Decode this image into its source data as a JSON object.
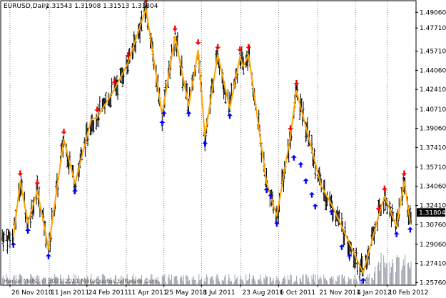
{
  "header": {
    "symbol_timeframe": "EURUSD,Daily",
    "ohlc": "1.31543 1.31908 1.31513 1.31804"
  },
  "footer": {
    "copyright": "Hanse Mets, © 2001-2011 MetaQuotes Software Corp."
  },
  "price_badge": {
    "value": "1.31804",
    "color": "#000000"
  },
  "colors": {
    "background": "#ffffff",
    "bars": "#000000",
    "zigzag": "#ffa500",
    "up_arrow": "#0000ff",
    "down_arrow": "#ff0000",
    "grid": "#808080",
    "volume": "#9aa0a8"
  },
  "chart_data": {
    "type": "line",
    "y_axis": {
      "ticks": [
        "1.49060",
        "1.47710",
        "1.45710",
        "1.44060",
        "1.42410",
        "1.40710",
        "1.39060",
        "1.37410",
        "1.35710",
        "1.34060",
        "1.32410",
        "1.30760",
        "1.29060",
        "1.27410",
        "1.25760"
      ],
      "range": [
        1.256,
        1.5
      ]
    },
    "x_axis": {
      "ticks": [
        "26 Nov 2010",
        "11 Jan 2011",
        "24 Feb 2011",
        "11 Apr 2011",
        "25 May 2011",
        "8 Jul 2011",
        "23 Aug 2011",
        "6 Oct 2011",
        "21 Nov 2011",
        "4 Jan 2012",
        "10 Feb 2012"
      ]
    },
    "grid": true,
    "zigzag": [
      {
        "date": "2010-11-30",
        "price": 1.2968
      },
      {
        "date": "2010-12-08",
        "price": 1.345
      },
      {
        "date": "2010-12-17",
        "price": 1.309
      },
      {
        "date": "2010-12-28",
        "price": 1.337
      },
      {
        "date": "2011-01-10",
        "price": 1.287
      },
      {
        "date": "2011-01-28",
        "price": 1.381
      },
      {
        "date": "2011-02-10",
        "price": 1.343
      },
      {
        "date": "2011-03-01",
        "price": 1.398
      },
      {
        "date": "2011-03-08",
        "price": 1.4
      },
      {
        "date": "2011-03-28",
        "price": 1.424
      },
      {
        "date": "2011-04-13",
        "price": 1.447
      },
      {
        "date": "2011-05-04",
        "price": 1.494
      },
      {
        "date": "2011-05-23",
        "price": 1.402
      },
      {
        "date": "2011-06-07",
        "price": 1.47
      },
      {
        "date": "2011-06-23",
        "price": 1.41
      },
      {
        "date": "2011-07-04",
        "price": 1.458
      },
      {
        "date": "2011-07-12",
        "price": 1.384
      },
      {
        "date": "2011-07-27",
        "price": 1.454
      },
      {
        "date": "2011-08-10",
        "price": 1.408
      },
      {
        "date": "2011-08-22",
        "price": 1.452
      },
      {
        "date": "2011-08-26",
        "price": 1.444
      },
      {
        "date": "2011-09-01",
        "price": 1.454
      },
      {
        "date": "2011-09-22",
        "price": 1.344
      },
      {
        "date": "2011-10-04",
        "price": 1.315
      },
      {
        "date": "2011-10-20",
        "price": 1.384
      },
      {
        "date": "2011-10-27",
        "price": 1.423
      },
      {
        "date": "2011-11-25",
        "price": 1.341
      },
      {
        "date": "2011-12-07",
        "price": 1.325
      },
      {
        "date": "2012-01-13",
        "price": 1.266
      },
      {
        "date": "2012-01-31",
        "price": 1.315
      },
      {
        "date": "2012-02-07",
        "price": 1.332
      },
      {
        "date": "2012-02-21",
        "price": 1.306
      },
      {
        "date": "2012-03-01",
        "price": 1.345
      },
      {
        "date": "2012-03-08",
        "price": 1.31
      }
    ],
    "down_arrows": [
      {
        "date": "2010-12-08",
        "price": 1.345
      },
      {
        "date": "2010-12-28",
        "price": 1.337
      },
      {
        "date": "2011-01-28",
        "price": 1.381
      },
      {
        "date": "2011-03-08",
        "price": 1.4
      },
      {
        "date": "2011-03-28",
        "price": 1.424
      },
      {
        "date": "2011-04-13",
        "price": 1.447
      },
      {
        "date": "2011-05-04",
        "price": 1.494
      },
      {
        "date": "2011-06-07",
        "price": 1.47
      },
      {
        "date": "2011-07-04",
        "price": 1.458
      },
      {
        "date": "2011-07-27",
        "price": 1.454
      },
      {
        "date": "2011-08-22",
        "price": 1.452
      },
      {
        "date": "2011-09-01",
        "price": 1.454
      },
      {
        "date": "2011-10-20",
        "price": 1.384
      },
      {
        "date": "2011-10-27",
        "price": 1.423
      },
      {
        "date": "2012-01-31",
        "price": 1.315
      },
      {
        "date": "2012-02-07",
        "price": 1.332
      },
      {
        "date": "2012-03-01",
        "price": 1.345
      }
    ],
    "up_arrows": [
      {
        "date": "2010-11-30",
        "price": 1.2968
      },
      {
        "date": "2010-12-17",
        "price": 1.309
      },
      {
        "date": "2011-01-10",
        "price": 1.287
      },
      {
        "date": "2011-02-10",
        "price": 1.343
      },
      {
        "date": "2011-05-23",
        "price": 1.402
      },
      {
        "date": "2011-05-25",
        "price": 1.41
      },
      {
        "date": "2011-06-23",
        "price": 1.41
      },
      {
        "date": "2011-07-12",
        "price": 1.384
      },
      {
        "date": "2011-08-10",
        "price": 1.408
      },
      {
        "date": "2011-09-22",
        "price": 1.344
      },
      {
        "date": "2011-09-27",
        "price": 1.339
      },
      {
        "date": "2011-10-04",
        "price": 1.315
      },
      {
        "date": "2011-10-24",
        "price": 1.372
      },
      {
        "date": "2011-11-01",
        "price": 1.366
      },
      {
        "date": "2011-11-07",
        "price": 1.352
      },
      {
        "date": "2011-11-14",
        "price": 1.34
      },
      {
        "date": "2011-11-18",
        "price": 1.33
      },
      {
        "date": "2011-12-07",
        "price": 1.325
      },
      {
        "date": "2011-12-19",
        "price": 1.295
      },
      {
        "date": "2011-12-28",
        "price": 1.287
      },
      {
        "date": "2012-01-13",
        "price": 1.266
      },
      {
        "date": "2012-02-21",
        "price": 1.306
      },
      {
        "date": "2012-03-08",
        "price": 1.31
      }
    ]
  }
}
